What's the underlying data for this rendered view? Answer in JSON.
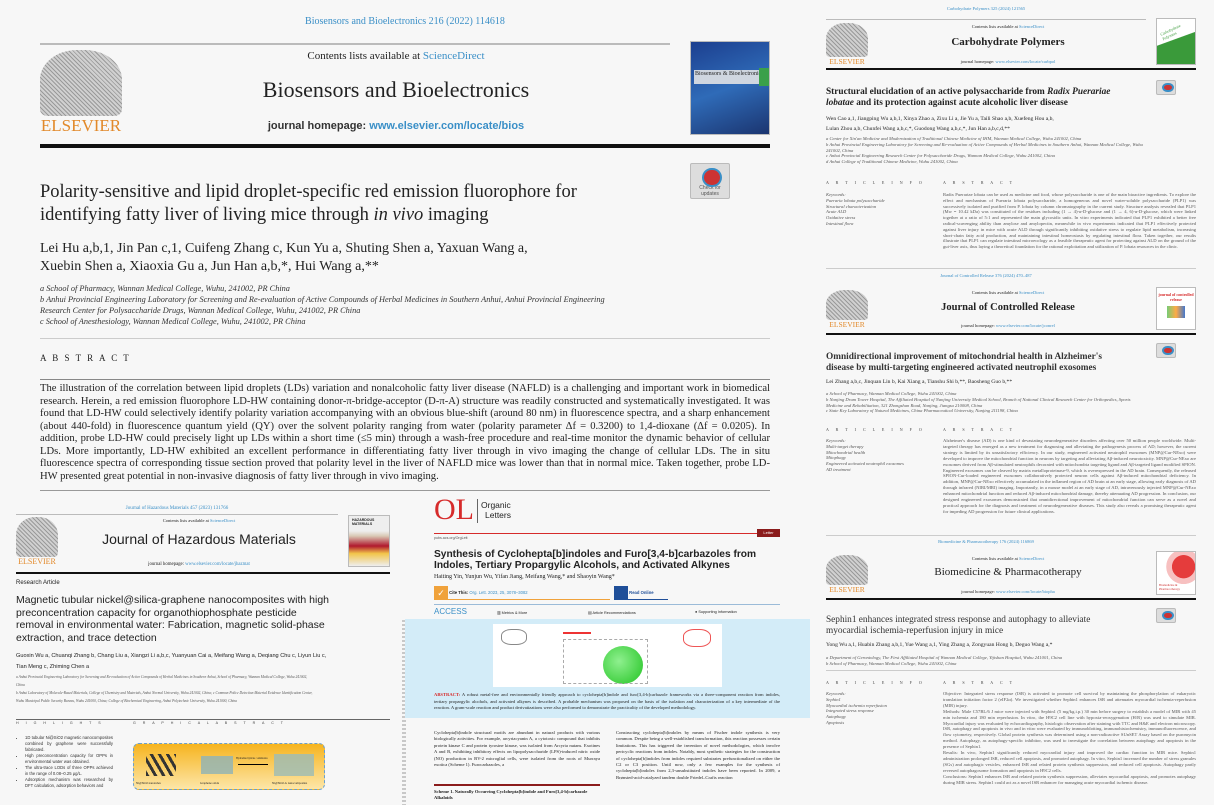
{
  "bios": {
    "ref": "Biosensors and Bioelectronics 216 (2022) 114618",
    "contents_prefix": "Contents lists available at ",
    "sciencedirect": "ScienceDirect",
    "journal": "Biosensors and Bioelectronics",
    "homepage_prefix": "journal homepage: ",
    "homepage_url": "www.elsevier.com/locate/bios",
    "publisher": "ELSEVIER",
    "cover_text": "Biosensors & Bioelectronics",
    "check_updates": "Check for updates",
    "title_1": "Polarity-sensitive and lipid droplet-specific red emission fluorophore for",
    "title_2a": "identifying fatty liver of living mice through ",
    "title_2b": "in vivo",
    "title_2c": " imaging",
    "authors_1": "Lei Hu a,b,1, Jin Pan c,1, Cuifeng Zhang c, Kun Yu a, Shuting Shen a, Yaxuan Wang a,",
    "authors_2": "Xuebin Shen a, Xiaoxia Gu a, Jun Han a,b,*, Hui Wang a,**",
    "affiliations": [
      "a School of Pharmacy, Wannan Medical College, Wuhu, 241002, PR China",
      "b Anhui Provincial Engineering Laboratory for Screening and Re-evaluation of Active Compounds of Herbal Medicines in Southern Anhui, Anhui Provincial Engineering",
      "Research Center for Polysaccharide Drugs, Wannan Medical College, Wuhu, 241002, PR China",
      "c School of Anesthesiology, Wannan Medical College, Wuhu, 241002, PR China"
    ],
    "abstract_label": "A B S T R A C T",
    "abstract": "The illustration of the correlation between lipid droplets (LDs) variation and nonalcoholic fatty liver disease (NAFLD) is a challenging and important work in biomedical research. Herein, a red emission fluorophore LD-HW containing donor-π-bridge-acceptor (D-π-A) structure was readily constructed and systematically investigated. It was found that LD-HW could selectively identify polarity variation accompanying with an obvious blue-shift (around 80 nm) in fluorescence spectra, and a sharp enhancement (about 440-fold) in fluorescence quantum yield (QY) over the solvent polarity ranging from water (polarity parameter Δf = 0.3200) to 1,4-dioxane (Δf = 0.0205). In addition, probe LD-HW could precisely light up LDs within a short time (≤5 min) through a wash-free procedure and real-time monitor the dynamic behavior of cellular LDs. More importantly, LD-HW exhibited an excellent performance in differentiating fatty liver through in vivo imaging the change of cellular LDs. The in situ fluorescence spectra of corresponding tissue section proved that polarity level in the liver of NAFLD mice was lower than that in normal mice. Taken together, probe LD-HW presented great potential in non-invasive diagnosis of fatty liver through in vivo imaging."
  },
  "carb": {
    "ref": "Carbohydrate Polymers 325 (2024) 121565",
    "contents_prefix": "Contents lists available at ",
    "sciencedirect": "ScienceDirect",
    "journal": "Carbohydrate Polymers",
    "homepage_prefix": "journal homepage: ",
    "homepage_url": "www.elsevier.com/locate/carbpol",
    "publisher": "ELSEVIER",
    "cover_text": "Carbohydrate Polymers",
    "title_1a": "Structural elucidation of an active polysaccharide from ",
    "title_1b": "Radix Puerariae",
    "title_2a": "lobatae",
    "title_2b": " and its protection against acute alcoholic liver disease",
    "authors_1": "Wen Cao a,1, Jiangping Wu a,b,1, Xinya Zhao a, Zixu Li a, Jie Yu a, Taili Shao a,b, Xuefeng Hou a,b,",
    "authors_2": "Lulan Zhou a,b, Chunfei Wang a,b,c,*, Guodong Wang a,b,c,*, Jun Han a,b,c,d,**",
    "affiliations": [
      "a Center for Xin'an Medicine and Modernization of Traditional Chinese Medicine of IHM, Wannan Medical College, Wuhu 241002, China",
      "b Anhui Provincial Engineering Laboratory for Screening and Re-evaluation of Active Compounds of Herbal Medicines in Southern Anhui, Wannan Medical College, Wuhu 241002, China",
      "c Anhui Provincial Engineering Research Center for Polysaccharide Drugs, Wannan Medical College, Wuhu 241002, China",
      "d Anhui College of Traditional Chinese Medicine, Wuhu 241002, China"
    ],
    "info_label": "A R T I C L E   I N F O",
    "abstract_label": "A B S T R A C T",
    "keywords": [
      "Keywords:",
      "Pueraria lobata polysaccharide",
      "Structural characterization",
      "Acute ALD",
      "Oxidative stress",
      "Intestinal flora"
    ],
    "abstract": "Radix Puerariae lobata can be used as medicine and food, whose polysaccharide is one of the main bioactive ingredients. To explore the effect and mechanism of Pueraria lobata polysaccharide, a homogeneous and novel water-soluble polysaccharide (PLP1) was successively isolated and purified from P. lobata by column chromatography in the current study. Structure analysis revealed that PLP1 (Mw = 10.42 kDa) was constituted of the residues including (1 → 4)-α-D-glucose and (1 → 4, 6)-α-D-glucose, which were linked together at a ratio of 5:1 and represented the main glycosidic units. In vitro experiments indicated that PLP1 exhibited a better free radical-scavenging ability than amylose and amylopectin, meanwhile in vivo experiments indicated that PLP1 effectively protected against liver injury in mice with acute ALD through significantly inhibiting oxidative stress to regulate lipid metabolism, increasing short-chain fatty acid production, and maintaining intestinal homeostasis by regulating intestinal flora. Taken together, our results illustrate that PLP1 can regulate intestinal microecology as a feasible therapeutic agent for protecting against ALD on the ground of the gut-liver axis, thus laying a theoretical foundation for the rational exploitation and utilization of P. lobata resources in the clinic."
  },
  "jcr": {
    "ref": "Journal of Controlled Release 376 (2024) 470–487",
    "contents_prefix": "Contents lists available at ",
    "sciencedirect": "ScienceDirect",
    "journal": "Journal of Controlled Release",
    "homepage_prefix": "journal homepage: ",
    "homepage_url": "www.elsevier.com/locate/jconrel",
    "publisher": "ELSEVIER",
    "cover_text": "journal of controlled release",
    "title_1": "Omnidirectional improvement of mitochondrial health in Alzheimer's",
    "title_2": "disease by multi-targeting engineered activated neutrophil exosomes",
    "authors": "Lei Zhang a,b,c, Jinquan Lin b, Kai Xiang a, Tianshu Shi b,**, Baosheng Guo b,**",
    "affiliations": [
      "a School of Pharmacy, Wannan Medical College, Wuhu 241002, China",
      "b Nanjing Drum Tower Hospital, The Affiliated Hospital of Nanjing University Medical School, Branch of National Clinical Research Center for Orthopedics, Sports",
      "Medicine and Rehabilitation, 321 Zhongshan Road, Nanjing, Jiangsu 210008, China",
      "c State Key Laboratory of Natural Medicines, China Pharmaceutical University, Nanjing 211198, China"
    ],
    "info_label": "A R T I C L E   I N F O",
    "abstract_label": "A B S T R A C T",
    "keywords": [
      "Keywords:",
      "Multi-target therapy",
      "Mitochondrial health",
      "Mitophagy",
      "Engineered activated neutrophil exosomes",
      "AD treatment"
    ],
    "abstract": "Alzheimer's disease (AD) is one kind of devastating neurodegenerative disorders affecting over 50 million people worldwide. Multi-targeted therapy has emerged as a new treatment for diagnosing and alleviating the pathogenesis process of AD; however, the current strategy is limited by its unsatisfactory efficiency. In our study, engineered activated neutrophil exosomes (MNP@Cur-NExo) were developed to improve the mitochondrial function in neurons by targeting and alleviating Aβ-induced neurotoxicity. MNP@Cur-NExo are exosomes derived from Aβ-stimulated neutrophils decorated with mitochondria targeting ligand and Aβ-targeted ligand modified SPION. Engineered exosomes can be cleaved by matrix metalloproteinase-9, which is overexpressed in the AD brain. Consequently, the released SPION-Cur-loaded engineered exosomes collaboratively protected neuron cells against Aβ-induced mitochondrial deficiency. In addition, MNP@Cur-NExo effectively accumulated in the inflamed region of AD brain at an early stage, allowing early diagnosis of AD through infrared (NIRI/MRI) imaging. Importantly, in a mouse model at an early stage of AD, intravenously injected MNP@Cur-NExo enhanced mitochondrial function and reduced Aβ-induced mitochondrial damage, thereby attenuating AD progression. In conclusion, our designed engineered exosomes demonstrated that omnidirectional improvement of mitochondrial function can serve as a novel and practical approach for the diagnosis and treatment of neurodegenerative diseases. This study also reveals a promising therapeutic agent for impeding AD progression for future clinical applications."
  },
  "bmp": {
    "ref": "Biomedicine & Pharmacotherapy 176 (2024) 116869",
    "contents_prefix": "Contents lists available at ",
    "sciencedirect": "ScienceDirect",
    "journal": "Biomedicine & Pharmacotherapy",
    "homepage_prefix": "journal homepage: ",
    "homepage_url": "www.elsevier.com/locate/biopha",
    "publisher": "ELSEVIER",
    "cover_text": "Biomedicine & Pharmacotherapy",
    "title_1": "Sephin1 enhances integrated stress response and autophagy to alleviate",
    "title_2": "myocardial ischemia-reperfusion injury in mice",
    "authors": "Yong Wu a,1, Huabin Zhang a,b,1, Yue Wang a,1, Ying Zhang a, Zongyuan Hong b, Deguo Wang a,*",
    "affiliations": [
      "a Department of Gerontology, The First Affiliated Hospital of Wannan Medical College, Yijishan Hospital, Wuhu 241001, China",
      "b School of Pharmacy, Wannan Medical College, Wuhu 241002, China"
    ],
    "info_label": "A R T I C L E   I N F O",
    "abstract_label": "A B S T R A C T",
    "keywords": [
      "Keywords:",
      "Sephin1",
      "Myocardial ischemia reperfusion",
      "Integrated stress response",
      "Autophagy",
      "Apoptosis"
    ],
    "abstract": [
      "Objective: Integrated stress response (ISR) is activated to promote cell survival by maintaining the phosphorylation of eukaryotic translation initiation factor 2 (eIF2α). We investigated whether Sephin1 enhances ISR and attenuates myocardial ischemia-reperfusion (MIR) injury.",
      "Methods: Male C57BL/6 J mice were injected with Sephin1 (5 mg/kg.i.p.) 30 min before surgery to establish a model of MIR with 45 min ischemia and 180 min reperfusion. In vitro, the H9C2 cell line with hypoxia-reoxygenation (H/R) was used to simulate MIR. Myocardial injury was evaluated by echocardiography, histologic observation after staining with TTC and H&E and electron microscopy. ISR, autophagy and apoptosis in vivo and in vitro were evaluated by immunoblotting, immunohistochemistry, immunofluorescence, and flow cytometry, respectively. Global protein synthesis was determined using a non-radioactive SUnSET Assay based on the puromycin method. Autophagy, as autophagy-specific inhibitor, was used to investigate the correlation between autophagy and apoptosis in the presence of Sephin1.",
      "Results: In vivo, Sephin1 significantly reduced myocardial injury and improved the cardiac function in MIR mice. Sephin1 administration prolonged ISR, reduced cell apoptosis, and promoted autophagy. In vitro, Sephin1 increased the number of stress granules (SGs) and autophagic vesicles, enhanced ISR and related protein synthesis suppression, and reduced cell apoptosis. Autophagy partly reversed autophagosome formation and apoptosis in H9C2 cells.",
      "Conclusions: Sephin1 enhances ISR and related protein synthesis suppression, alleviates myocardial apoptosis, and promotes autophagy during MIR stress. Sephin1 could act as a novel ISR enhancer for managing acute myocardial ischemic disease."
    ]
  },
  "jhm": {
    "ref": "Journal of Hazardous Materials 457 (2023) 131766",
    "contents_prefix": "Contents lists available at ",
    "sciencedirect": "ScienceDirect",
    "journal": "Journal of Hazardous Materials",
    "homepage_prefix": "journal homepage: ",
    "homepage_url": "www.elsevier.com/locate/jhazmat",
    "publisher": "ELSEVIER",
    "cover_text": "HAZARDOUS MATERIALS",
    "article_type": "Research Article",
    "title": "Magnetic tubular nickel@silica-graphene nanocomposites with high preconcentration capacity for organothiophosphate pesticide removal in environmental water: Fabrication, magnetic solid-phase extraction, and trace detection",
    "authors": "Guoxin Wu a, Chuanqi Zhang b, Chang Liu a, Xiangzi Li a,b,c, Yuanyuan Cai a, Meifang Wang a, Deqiang Chu c, Liyun Liu c, Tian Meng c, Zhiming Chen a",
    "affiliations": [
      "a Anhui Provincial Engineering Laboratory for Screening and Re-evaluation of Active Compounds of Herbal Medicines in Southern Anhui, School of Pharmacy, Wannan Medical College, Wuhu 241002, China",
      "b Anhui Laboratory of Molecule-Based Materials, College of Chemistry and Materials, Anhui Normal University, Wuhu 241002, China; c Common Police Detection Material Evidence Identification Center, Wuhu Municipal Public Security Bureau, Wuhu 241000, China; College of Biochemical Engineering, Anhui Polytechnic University, Wuhu 241000, China"
    ],
    "highlights_label": "H I G H L I G H T S",
    "graphical_label": "G R A P H I C A L   A B S T R A C T",
    "highlights": [
      "1D tubular Ni@SiO2 magnetic nanocomposites combined by graphene were successfully fabricated.",
      "High preconcentration capacity for OPPs in environmental water was obtained.",
      "The ultra-trace LODs of three OPPs achieved in the range of 0.08–0.25 μg/L.",
      "Adsorption mechanism was researched by DFT calculation, adsorption behaviors and"
    ],
    "ga_labels": [
      "Ni@SiO2 nanotubes",
      "Graphene oxide",
      "Hydrazine hydrate / Ammonia",
      "Ni@SiO2-G nanocomposites"
    ]
  },
  "ol": {
    "logo": "OL",
    "brand_1": "Organic",
    "brand_2": "Letters",
    "url": "pubs.acs.org/OrgLett",
    "badge": "Letter",
    "title": "Synthesis of Cyclohepta[b]indoles and Furo[3,4-b]carbazoles from Indoles, Tertiary Propargylic Alcohols, and Activated Alkynes",
    "authors": "Haiting Yin, Yunjun Wu, Yifan Jiang, Meifang Wang,* and Shaoyin Wang*",
    "cite_label": "Cite This:",
    "cite_ref": "Org. Lett. 2023, 25, 3078–3082",
    "read_online": "Read Online",
    "access": "ACCESS",
    "tabs": [
      "Metrics & More",
      "Article Recommendations",
      "Supporting Information"
    ],
    "abstract_label": "ABSTRACT:",
    "abstract": "A robust metal-free and environmentally friendly approach to cyclohepta[b]indole and furo[3,4-b]carbazole frameworks via a three-component reaction from indoles, tertiary propargylic alcohols, and activated alkynes is described. A probable mechanism was proposed on the basis of the isolation and characterization of a key intermediate of the reaction. A gram-scale reaction and product derivatizations were also performed to demonstrate the practicality of the developed methodology.",
    "body_left": "Cyclohepta[b]indole structural motifs are abundant in natural products with various biologically activities. For example, arcyriacyanin A, a cytotoxic compound that inhibits protein kinase C and protein tyrosine kinase, was isolated from Arcyria nutans. Exotines A and B, exhibiting inhibitory effects on lipopolysaccharide (LPS)-induced nitric oxide (NO) production in BV-2 microglial cells, were isolated from the roots of Murraya exotica (Scheme 1). Furocarbazoles, a",
    "scheme_caption": "Scheme 1. Naturally Occurring Cyclohepta[b]indole and Furo[3,4-b]carbazole Alkaloids",
    "body_right": "Constructing cyclohepta[b]indoles by means of Fischer indole synthesis is very common. Despite being a well-established transformation, this reaction possesses certain limitations. This has triggered the invention of novel methodologies, which involve pericyclic reactions from indoles. Notably, most synthetic strategies for the construction of cyclohepta[b]indoles from indoles required substrates prefunctionalized on either the C2 or C3 position. Until now, only a few examples for the synthesis of cyclohepta[b]indoles from 2,3-unsubstituted indoles have been reported. In 2009, a Brønsted-acid-catalyzed tandem double Friedel–Crafts reaction",
    "colors": {
      "brand_red": "#d62b2b",
      "abstract_bg": "#d3ecf8",
      "cite_orange": "#f0a23b",
      "read_blue": "#1f4f99"
    }
  },
  "colors": {
    "elsevier_orange": "#e2892a",
    "link_blue": "#3a8fc7"
  }
}
